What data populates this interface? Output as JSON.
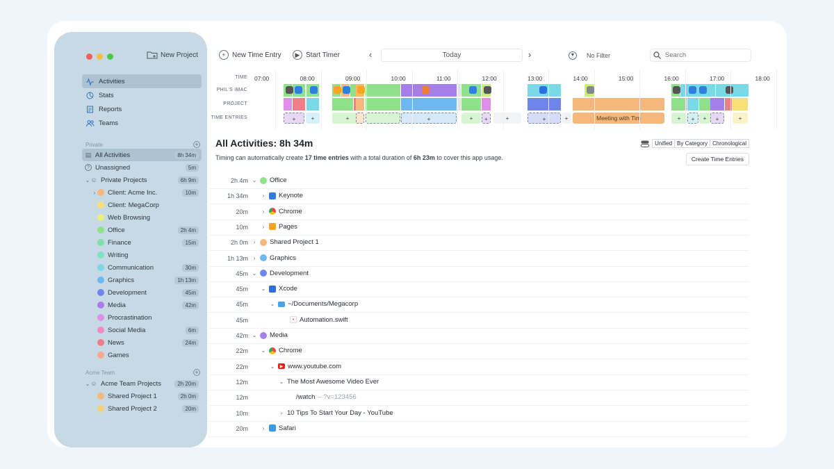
{
  "sidebar": {
    "new_project": "New Project",
    "nav": [
      {
        "label": "Activities",
        "icon": "activity-icon"
      },
      {
        "label": "Stats",
        "icon": "stats-icon"
      },
      {
        "label": "Reports",
        "icon": "reports-icon"
      },
      {
        "label": "Teams",
        "icon": "teams-icon"
      }
    ],
    "private_label": "Private",
    "acme_label": "Acme Team",
    "private_items": [
      {
        "label": "All Activities",
        "time": "8h 34m",
        "color": "",
        "chev": "",
        "indent": 0,
        "icon": "all"
      },
      {
        "label": "Unassigned",
        "time": "5m",
        "color": "",
        "chev": "",
        "indent": 0,
        "icon": "q"
      },
      {
        "label": "Private Projects",
        "time": "6h 9m",
        "color": "",
        "chev": "v",
        "indent": 0,
        "icon": "person"
      },
      {
        "label": "Client: Acme Inc.",
        "time": "10m",
        "color": "#f4b87c",
        "chev": ">",
        "indent": 1
      },
      {
        "label": "Client: MegaCorp",
        "time": "",
        "color": "#f7e07a",
        "chev": "",
        "indent": 1
      },
      {
        "label": "Web Browsing",
        "time": "",
        "color": "#e8ef80",
        "chev": "",
        "indent": 1
      },
      {
        "label": "Office",
        "time": "2h 4m",
        "color": "#8fe28a",
        "chev": "",
        "indent": 1
      },
      {
        "label": "Finance",
        "time": "15m",
        "color": "#7fe0a8",
        "chev": "",
        "indent": 1
      },
      {
        "label": "Writing",
        "time": "",
        "color": "#7fe0c4",
        "chev": "",
        "indent": 1
      },
      {
        "label": "Communication",
        "time": "30m",
        "color": "#79d9e6",
        "chev": "",
        "indent": 1
      },
      {
        "label": "Graphics",
        "time": "1h 13m",
        "color": "#6cb8ef",
        "chev": "",
        "indent": 1
      },
      {
        "label": "Development",
        "time": "45m",
        "color": "#6f86e8",
        "chev": "",
        "indent": 1
      },
      {
        "label": "Media",
        "time": "42m",
        "color": "#a77ee8",
        "chev": "",
        "indent": 1
      },
      {
        "label": "Procrastination",
        "time": "",
        "color": "#e18ee8",
        "chev": "",
        "indent": 1
      },
      {
        "label": "Social Media",
        "time": "6m",
        "color": "#f08cc0",
        "chev": "",
        "indent": 1
      },
      {
        "label": "News",
        "time": "24m",
        "color": "#f07e86",
        "chev": "",
        "indent": 1
      },
      {
        "label": "Games",
        "time": "",
        "color": "#f7a88a",
        "chev": "",
        "indent": 1
      }
    ],
    "acme_items": [
      {
        "label": "Acme Team Projects",
        "time": "2h 20m",
        "color": "",
        "chev": "v",
        "indent": 0,
        "icon": "people"
      },
      {
        "label": "Shared Project 1",
        "time": "2h 0m",
        "color": "#f4b87c",
        "chev": "",
        "indent": 1
      },
      {
        "label": "Shared Project 2",
        "time": "20m",
        "color": "#f7cf7a",
        "chev": "",
        "indent": 1
      }
    ]
  },
  "toolbar": {
    "new_time_entry": "New Time Entry",
    "start_timer": "Start Timer",
    "today": "Today",
    "filter": "No Filter",
    "search_placeholder": "Search"
  },
  "timeline": {
    "row_labels": [
      "TIME",
      "PHIL'S IMAC",
      "PROJECT",
      "TIME ENTRIES"
    ],
    "hours": [
      "07:00",
      "08:00",
      "09:00",
      "10:00",
      "11:00",
      "12:00",
      "13:00",
      "14:00",
      "15:00",
      "16:00",
      "17:00",
      "18:00"
    ],
    "meeting_label": "Meeting with Tim"
  },
  "content": {
    "title": "All Activities: 8h 34m",
    "subtitle_pre": "Timing can automatically create ",
    "subtitle_count": "17 time entries",
    "subtitle_mid": " with a total duration of ",
    "subtitle_dur": "6h 23m",
    "subtitle_post": " to cover this app usage.",
    "view_modes": [
      "Unified",
      "By Category",
      "Chronological"
    ],
    "create_button": "Create Time Entries",
    "rows": [
      {
        "dur": "2h 4m",
        "label": "Office",
        "caret": "v",
        "level": 0,
        "kind": "dot",
        "color": "#8fe28a"
      },
      {
        "dur": "1h 34m",
        "label": "Keynote",
        "caret": ">",
        "level": 1,
        "kind": "icon",
        "color": "#2d7fe0"
      },
      {
        "dur": "20m",
        "label": "Chrome",
        "caret": ">",
        "level": 1,
        "kind": "chrome",
        "color": "#e44"
      },
      {
        "dur": "10m",
        "label": "Pages",
        "caret": ">",
        "level": 1,
        "kind": "icon",
        "color": "#f5a623"
      },
      {
        "dur": "2h 0m",
        "label": "Shared Project 1",
        "caret": ">",
        "level": 0,
        "kind": "dot",
        "color": "#f4b87c"
      },
      {
        "dur": "1h 13m",
        "label": "Graphics",
        "caret": ">",
        "level": 0,
        "kind": "dot",
        "color": "#6cb8ef"
      },
      {
        "dur": "45m",
        "label": "Development",
        "caret": "v",
        "level": 0,
        "kind": "dot",
        "color": "#6f86e8"
      },
      {
        "dur": "45m",
        "label": "Xcode",
        "caret": "v",
        "level": 1,
        "kind": "icon",
        "color": "#2d6fe0"
      },
      {
        "dur": "45m",
        "label": "~/Documents/Megacorp",
        "caret": "v",
        "level": 2,
        "kind": "folder",
        "color": "#4aa3e8"
      },
      {
        "dur": "45m",
        "label": "Automation.swift",
        "caret": "",
        "level": 3,
        "kind": "swift",
        "color": "#f05138"
      },
      {
        "dur": "42m",
        "label": "Media",
        "caret": "v",
        "level": 0,
        "kind": "dot",
        "color": "#a77ee8"
      },
      {
        "dur": "22m",
        "label": "Chrome",
        "caret": "v",
        "level": 1,
        "kind": "chrome",
        "color": "#e44"
      },
      {
        "dur": "22m",
        "label": "www.youtube.com",
        "caret": "v",
        "level": 2,
        "kind": "youtube",
        "color": "#e62117"
      },
      {
        "dur": "12m",
        "label": "The Most Awesome Video Ever",
        "caret": "v",
        "level": 3,
        "kind": "none",
        "color": ""
      },
      {
        "dur": "12m",
        "label": "/watch",
        "suffix": " – ?v=123456",
        "caret": "",
        "level": 4,
        "kind": "none",
        "color": ""
      },
      {
        "dur": "10m",
        "label": "10 Tips To Start Your Day - YouTube",
        "caret": ">",
        "level": 3,
        "kind": "none",
        "color": ""
      },
      {
        "dur": "20m",
        "label": "Safari",
        "caret": ">",
        "level": 1,
        "kind": "icon",
        "color": "#3a9ae8"
      }
    ]
  }
}
